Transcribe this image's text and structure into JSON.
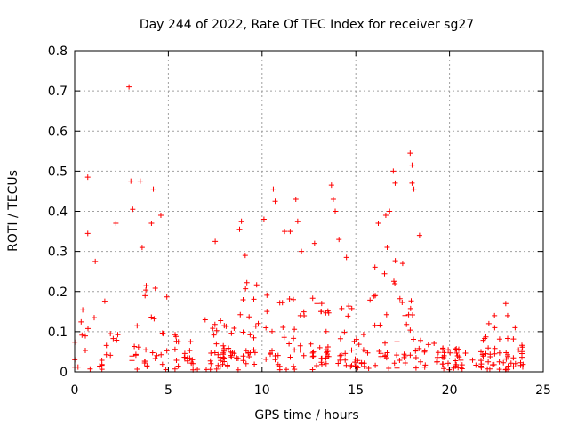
{
  "chart_data": {
    "type": "scatter",
    "title": "Day 244 of 2022, Rate Of TEC Index for receiver sg27",
    "xlabel": "GPS time / hours",
    "ylabel": "ROTI / TECUs",
    "xlim": [
      0,
      25
    ],
    "ylim": [
      0,
      0.8
    ],
    "xticks": [
      0,
      5,
      10,
      15,
      20,
      25
    ],
    "yticks": [
      0,
      0.1,
      0.2,
      0.3,
      0.4,
      0.5,
      0.6,
      0.7,
      0.8
    ],
    "grid": true,
    "marker": "+",
    "marker_color": "#ff0000",
    "series": [
      {
        "name": "sg27",
        "envelope": {
          "description": "approximate upper envelope of dense point cloud (hour, ROTI)",
          "x": [
            0,
            0.5,
            1,
            1.5,
            2,
            2.5,
            3,
            3.5,
            4,
            4.5,
            5,
            5.5,
            6,
            6.5,
            7,
            7.5,
            8,
            8.5,
            9,
            9.5,
            10,
            10.5,
            11,
            11.5,
            12,
            12.5,
            13,
            13.5,
            14,
            14.5,
            15,
            15.5,
            16,
            16.5,
            17,
            17.5,
            18,
            18.5,
            19,
            19.5,
            20,
            20.5,
            21,
            21.5,
            22,
            22.5,
            23,
            23.5,
            24
          ],
          "y": [
            0.12,
            0.22,
            0.25,
            0.18,
            0.2,
            0.15,
            0.3,
            0.22,
            0.35,
            0.25,
            0.2,
            0.12,
            0.1,
            0.08,
            0.15,
            0.2,
            0.18,
            0.2,
            0.28,
            0.22,
            0.3,
            0.25,
            0.32,
            0.3,
            0.33,
            0.28,
            0.2,
            0.25,
            0.35,
            0.22,
            0.2,
            0.12,
            0.3,
            0.33,
            0.36,
            0.28,
            0.32,
            0.2,
            0.1,
            0.08,
            0.08,
            0.08,
            0.07,
            0.09,
            0.1,
            0.12,
            0.1,
            0.1,
            0.06
          ]
        },
        "outliers": [
          [
            0.7,
            0.485
          ],
          [
            0.7,
            0.345
          ],
          [
            1.1,
            0.275
          ],
          [
            2.2,
            0.37
          ],
          [
            2.9,
            0.71
          ],
          [
            3.0,
            0.475
          ],
          [
            3.1,
            0.405
          ],
          [
            3.5,
            0.475
          ],
          [
            3.6,
            0.31
          ],
          [
            4.1,
            0.37
          ],
          [
            4.2,
            0.455
          ],
          [
            4.6,
            0.39
          ],
          [
            7.5,
            0.325
          ],
          [
            8.9,
            0.375
          ],
          [
            8.8,
            0.355
          ],
          [
            9.1,
            0.29
          ],
          [
            10.1,
            0.38
          ],
          [
            10.6,
            0.455
          ],
          [
            10.7,
            0.425
          ],
          [
            11.2,
            0.35
          ],
          [
            11.5,
            0.35
          ],
          [
            11.8,
            0.43
          ],
          [
            11.9,
            0.375
          ],
          [
            12.1,
            0.3
          ],
          [
            12.8,
            0.32
          ],
          [
            13.7,
            0.465
          ],
          [
            13.8,
            0.43
          ],
          [
            13.9,
            0.4
          ],
          [
            14.1,
            0.33
          ],
          [
            14.5,
            0.285
          ],
          [
            16.2,
            0.37
          ],
          [
            16.6,
            0.39
          ],
          [
            16.8,
            0.4
          ],
          [
            17.0,
            0.5
          ],
          [
            17.1,
            0.47
          ],
          [
            17.5,
            0.27
          ],
          [
            17.9,
            0.545
          ],
          [
            18.0,
            0.515
          ],
          [
            18.0,
            0.47
          ],
          [
            18.1,
            0.455
          ],
          [
            18.4,
            0.34
          ],
          [
            22.1,
            0.12
          ],
          [
            22.4,
            0.14
          ],
          [
            23.0,
            0.17
          ],
          [
            23.1,
            0.14
          ],
          [
            23.5,
            0.11
          ]
        ]
      }
    ]
  }
}
